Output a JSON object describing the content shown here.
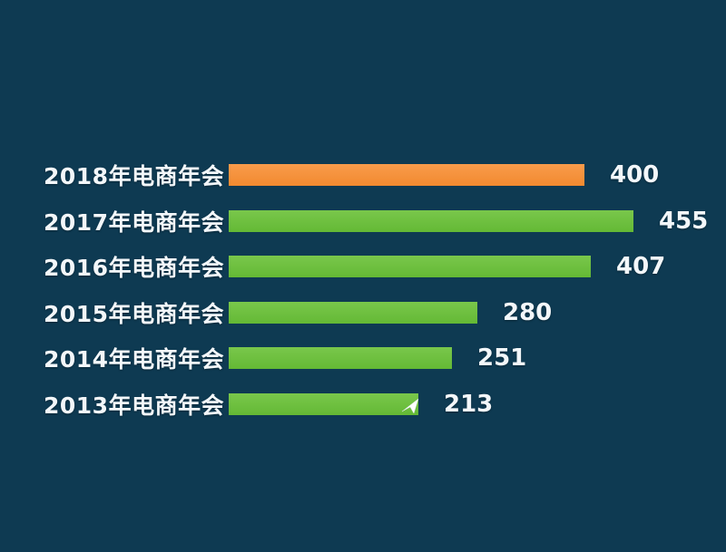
{
  "chart_data": {
    "type": "bar",
    "orientation": "horizontal",
    "title": "",
    "xlabel": "",
    "ylabel": "",
    "categories": [
      "2018年电商年会",
      "2017年电商年会",
      "2016年电商年会",
      "2015年电商年会",
      "2014年电商年会",
      "2013年电商年会"
    ],
    "values": [
      400,
      455,
      407,
      280,
      251,
      213
    ],
    "value_labels": [
      "400",
      "455",
      "407",
      "280",
      "251",
      "213"
    ],
    "xlim": [
      0,
      455
    ],
    "grid": false,
    "legend": false,
    "bar_colors": [
      "#f6923c",
      "#6abe3b",
      "#6abe3b",
      "#6abe3b",
      "#6abe3b",
      "#6abe3b"
    ]
  },
  "rows": [
    {
      "label": "2018年电商年会",
      "value": "400"
    },
    {
      "label": "2017年电商年会",
      "value": "455"
    },
    {
      "label": "2016年电商年会",
      "value": "407"
    },
    {
      "label": "2015年电商年会",
      "value": "280"
    },
    {
      "label": "2014年电商年会",
      "value": "251"
    },
    {
      "label": "2013年电商年会",
      "value": "213"
    }
  ],
  "colors": {
    "background": "#0e3a52",
    "text": "#f3f7fa",
    "bar_orange": "#f6923c",
    "bar_green": "#6abe3b",
    "cursor": "#ffffff"
  },
  "icons": {
    "cursor": "mouse-cursor-icon"
  }
}
